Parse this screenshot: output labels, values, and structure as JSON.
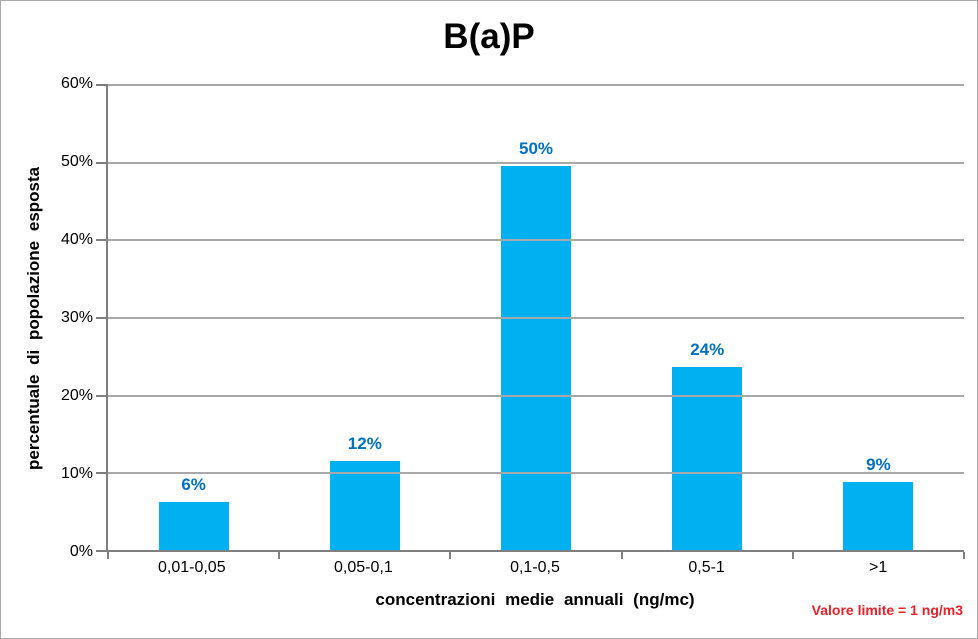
{
  "chart_data": {
    "type": "bar",
    "title": "B(a)P",
    "categories": [
      "0,01-0,05",
      "0,05-0,1",
      "0,1-0,5",
      "0,5-1",
      ">1"
    ],
    "values": [
      6.2,
      11.5,
      49.5,
      23.6,
      8.7
    ],
    "bar_labels": [
      "6%",
      "12%",
      "50%",
      "24%",
      "9%"
    ],
    "xlabel": "concentrazioni medie annuali (ng/mc)",
    "ylabel": "percentuale di popolazione esposta",
    "ylim": [
      0,
      60
    ],
    "ytick_step": 10,
    "ytick_labels": [
      "0%",
      "10%",
      "20%",
      "30%",
      "40%",
      "50%",
      "60%"
    ],
    "grid": "horizontal",
    "legend": "none",
    "annotation": {
      "text": "Valore limite = 1 ng/m3"
    },
    "colors": {
      "bar": "#00b0f0",
      "bar_label": "#0070c0",
      "annotation": "#e8202a",
      "gridline": "#a8a8a8",
      "axis": "#7f7f7f",
      "title": "#000000"
    }
  }
}
